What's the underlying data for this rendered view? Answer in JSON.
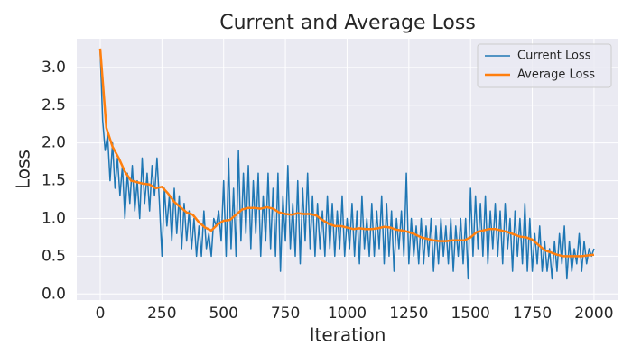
{
  "chart_data": {
    "type": "line",
    "title": "Current and Average Loss",
    "xlabel": "Iteration",
    "ylabel": "Loss",
    "xlim": [
      -95,
      2099
    ],
    "ylim": [
      -0.08,
      3.38
    ],
    "xticks": [
      0,
      250,
      500,
      750,
      1000,
      1250,
      1500,
      1750,
      2000
    ],
    "yticks": [
      {
        "value": 0,
        "label": "0.0"
      },
      0.5,
      {
        "value": 1,
        "label": "1.0"
      },
      1.5,
      {
        "value": 2,
        "label": "2.0"
      },
      2.5,
      {
        "value": 3,
        "label": "3.0"
      }
    ],
    "grid": true,
    "legend": "upper right",
    "series": [
      {
        "name": "Current Loss",
        "color": "#1f77b4",
        "width": 1.5,
        "x": [
          0,
          10,
          20,
          30,
          40,
          50,
          60,
          70,
          80,
          90,
          100,
          110,
          120,
          130,
          140,
          150,
          160,
          170,
          180,
          190,
          200,
          210,
          220,
          230,
          240,
          250,
          260,
          270,
          280,
          290,
          300,
          310,
          320,
          330,
          340,
          350,
          360,
          370,
          380,
          390,
          400,
          410,
          420,
          430,
          440,
          450,
          460,
          470,
          480,
          490,
          500,
          510,
          520,
          530,
          540,
          550,
          560,
          570,
          580,
          590,
          600,
          610,
          620,
          630,
          640,
          650,
          660,
          670,
          680,
          690,
          700,
          710,
          720,
          730,
          740,
          750,
          760,
          770,
          780,
          790,
          800,
          810,
          820,
          830,
          840,
          850,
          860,
          870,
          880,
          890,
          900,
          910,
          920,
          930,
          940,
          950,
          960,
          970,
          980,
          990,
          1000,
          1010,
          1020,
          1030,
          1040,
          1050,
          1060,
          1070,
          1080,
          1090,
          1100,
          1110,
          1120,
          1130,
          1140,
          1150,
          1160,
          1170,
          1180,
          1190,
          1200,
          1210,
          1220,
          1230,
          1240,
          1250,
          1260,
          1270,
          1280,
          1290,
          1300,
          1310,
          1320,
          1330,
          1340,
          1350,
          1360,
          1370,
          1380,
          1390,
          1400,
          1410,
          1420,
          1430,
          1440,
          1450,
          1460,
          1470,
          1480,
          1490,
          1500,
          1510,
          1520,
          1530,
          1540,
          1550,
          1560,
          1570,
          1580,
          1590,
          1600,
          1610,
          1620,
          1630,
          1640,
          1650,
          1660,
          1670,
          1680,
          1690,
          1700,
          1710,
          1720,
          1730,
          1740,
          1750,
          1760,
          1770,
          1780,
          1790,
          1800,
          1810,
          1820,
          1830,
          1840,
          1850,
          1860,
          1870,
          1880,
          1890,
          1900,
          1910,
          1920,
          1930,
          1940,
          1950,
          1960,
          1970,
          1980,
          1990,
          2000
        ],
        "values": [
          3.2,
          2.3,
          1.9,
          2.1,
          1.5,
          2.0,
          1.4,
          1.8,
          1.3,
          1.7,
          1.0,
          1.6,
          1.2,
          1.7,
          1.1,
          1.5,
          1.0,
          1.8,
          1.2,
          1.6,
          1.1,
          1.7,
          1.3,
          1.8,
          1.2,
          0.5,
          1.4,
          0.9,
          1.3,
          0.7,
          1.4,
          0.8,
          1.3,
          0.6,
          1.2,
          0.7,
          1.1,
          0.6,
          1.0,
          0.5,
          0.9,
          0.5,
          1.1,
          0.6,
          0.8,
          0.5,
          1.0,
          0.9,
          1.1,
          0.7,
          1.5,
          0.5,
          1.8,
          0.6,
          1.4,
          0.5,
          1.9,
          0.7,
          1.6,
          0.8,
          1.7,
          0.6,
          1.5,
          0.8,
          1.6,
          0.5,
          1.3,
          0.7,
          1.6,
          0.6,
          1.4,
          0.5,
          1.6,
          0.3,
          1.3,
          0.7,
          1.7,
          0.6,
          1.2,
          0.5,
          1.5,
          0.4,
          1.4,
          0.7,
          1.6,
          0.6,
          1.3,
          0.5,
          1.2,
          0.6,
          1.1,
          0.5,
          1.3,
          0.6,
          1.2,
          0.5,
          1.1,
          0.6,
          1.3,
          0.5,
          1.0,
          0.6,
          1.2,
          0.5,
          1.1,
          0.4,
          1.3,
          0.6,
          1.0,
          0.5,
          1.2,
          0.5,
          1.1,
          0.6,
          1.3,
          0.4,
          1.2,
          0.5,
          1.1,
          0.3,
          1.0,
          0.6,
          1.1,
          0.5,
          1.6,
          0.4,
          1.0,
          0.5,
          0.9,
          0.4,
          1.0,
          0.4,
          0.9,
          0.5,
          1.0,
          0.3,
          0.9,
          0.4,
          1.0,
          0.5,
          0.9,
          0.4,
          1.0,
          0.3,
          0.9,
          0.5,
          1.0,
          0.4,
          1.0,
          0.2,
          1.4,
          0.5,
          1.3,
          0.6,
          1.2,
          0.5,
          1.3,
          0.4,
          1.1,
          0.6,
          1.2,
          0.5,
          1.1,
          0.4,
          1.2,
          0.6,
          1.0,
          0.3,
          1.1,
          0.5,
          1.0,
          0.4,
          1.2,
          0.3,
          1.0,
          0.3,
          0.8,
          0.4,
          0.9,
          0.3,
          0.7,
          0.3,
          0.6,
          0.2,
          0.7,
          0.3,
          0.8,
          0.4,
          0.9,
          0.2,
          0.7,
          0.3,
          0.6,
          0.4,
          0.8,
          0.3,
          0.7,
          0.4,
          0.6,
          0.5,
          0.6
        ]
      },
      {
        "name": "Average Loss",
        "color": "#ff7f0e",
        "width": 2.5,
        "x": [
          0,
          25,
          50,
          75,
          100,
          125,
          150,
          175,
          200,
          225,
          250,
          275,
          300,
          325,
          350,
          375,
          400,
          425,
          450,
          475,
          500,
          525,
          550,
          575,
          600,
          625,
          650,
          675,
          700,
          725,
          750,
          775,
          800,
          825,
          850,
          875,
          900,
          925,
          950,
          975,
          1000,
          1025,
          1050,
          1075,
          1100,
          1125,
          1150,
          1175,
          1200,
          1225,
          1250,
          1275,
          1300,
          1325,
          1350,
          1375,
          1400,
          1425,
          1450,
          1475,
          1500,
          1525,
          1550,
          1575,
          1600,
          1625,
          1650,
          1675,
          1700,
          1725,
          1750,
          1775,
          1800,
          1825,
          1850,
          1875,
          1900,
          1925,
          1950,
          1975,
          2000
        ],
        "values": [
          3.25,
          2.2,
          1.95,
          1.8,
          1.62,
          1.5,
          1.48,
          1.46,
          1.45,
          1.4,
          1.42,
          1.33,
          1.22,
          1.15,
          1.08,
          1.05,
          0.95,
          0.88,
          0.84,
          0.92,
          0.97,
          0.98,
          1.05,
          1.12,
          1.14,
          1.14,
          1.13,
          1.15,
          1.13,
          1.08,
          1.06,
          1.05,
          1.07,
          1.06,
          1.06,
          1.04,
          0.98,
          0.93,
          0.9,
          0.9,
          0.88,
          0.86,
          0.87,
          0.86,
          0.86,
          0.87,
          0.89,
          0.88,
          0.85,
          0.84,
          0.82,
          0.79,
          0.75,
          0.73,
          0.71,
          0.7,
          0.7,
          0.71,
          0.71,
          0.71,
          0.75,
          0.82,
          0.84,
          0.86,
          0.86,
          0.84,
          0.82,
          0.79,
          0.76,
          0.75,
          0.72,
          0.65,
          0.58,
          0.55,
          0.52,
          0.5,
          0.5,
          0.5,
          0.5,
          0.51,
          0.52
        ]
      }
    ]
  }
}
